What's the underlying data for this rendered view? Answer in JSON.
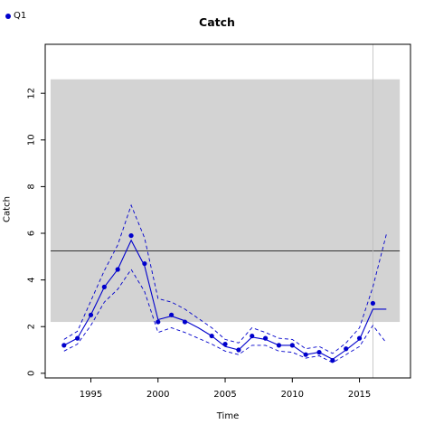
{
  "legend": {
    "label": "Q1",
    "color": "#0000cc"
  },
  "chart_data": {
    "type": "line",
    "title": "Catch",
    "xlabel": "Time",
    "ylabel": "Catch",
    "xlim": [
      1991.6,
      2018.8
    ],
    "ylim": [
      -0.2,
      14.1
    ],
    "xticks": [
      1995,
      2000,
      2005,
      2010,
      2015
    ],
    "yticks": [
      0,
      2,
      4,
      6,
      8,
      10,
      12
    ],
    "grid": false,
    "legend_position": "top-left",
    "shaded_band": {
      "x": [
        1992,
        2018
      ],
      "y": [
        2.2,
        12.6
      ],
      "color": "#d3d3d3"
    },
    "hline": 5.25,
    "vline": 2016,
    "series": [
      {
        "name": "Q1",
        "color": "#0000cc",
        "observed": {
          "x": [
            1993,
            1994,
            1995,
            1996,
            1997,
            1998,
            1999,
            2000,
            2001,
            2002,
            2004,
            2005,
            2006,
            2007,
            2008,
            2009,
            2010,
            2011,
            2012,
            2013,
            2014,
            2015,
            2016
          ],
          "y": [
            1.2,
            1.5,
            2.5,
            3.7,
            4.45,
            5.9,
            4.7,
            2.2,
            2.5,
            2.2,
            1.6,
            1.25,
            1.0,
            1.6,
            1.5,
            1.2,
            1.2,
            0.8,
            0.9,
            0.55,
            1.05,
            1.5,
            3.0
          ]
        },
        "fit": {
          "x": [
            1993,
            1994,
            1995,
            1996,
            1997,
            1998,
            1999,
            2000,
            2001,
            2002,
            2003,
            2004,
            2005,
            2006,
            2007,
            2008,
            2009,
            2010,
            2011,
            2012,
            2013,
            2014,
            2015,
            2016,
            2017
          ],
          "y": [
            1.2,
            1.5,
            2.5,
            3.7,
            4.45,
            5.7,
            4.6,
            2.3,
            2.45,
            2.25,
            1.95,
            1.6,
            1.15,
            1.0,
            1.55,
            1.45,
            1.2,
            1.2,
            0.8,
            0.9,
            0.6,
            1.0,
            1.45,
            2.75,
            2.75
          ]
        },
        "upper": {
          "x": [
            1993,
            1994,
            1995,
            1996,
            1997,
            1998,
            1999,
            2000,
            2001,
            2002,
            2003,
            2004,
            2005,
            2006,
            2007,
            2008,
            2009,
            2010,
            2011,
            2012,
            2013,
            2014,
            2015,
            2016,
            2017
          ],
          "y": [
            1.45,
            1.8,
            3.1,
            4.4,
            5.5,
            7.2,
            5.8,
            3.2,
            3.05,
            2.75,
            2.35,
            1.95,
            1.45,
            1.3,
            1.95,
            1.75,
            1.5,
            1.45,
            1.05,
            1.15,
            0.85,
            1.3,
            1.95,
            3.7,
            5.95
          ]
        },
        "lower": {
          "x": [
            1993,
            1994,
            1995,
            1996,
            1997,
            1998,
            1999,
            2000,
            2001,
            2002,
            2003,
            2004,
            2005,
            2006,
            2007,
            2008,
            2009,
            2010,
            2011,
            2012,
            2013,
            2014,
            2015,
            2016,
            2017
          ],
          "y": [
            0.95,
            1.25,
            2.05,
            3.05,
            3.6,
            4.45,
            3.5,
            1.75,
            1.95,
            1.75,
            1.5,
            1.25,
            0.95,
            0.8,
            1.2,
            1.2,
            0.95,
            0.9,
            0.65,
            0.75,
            0.45,
            0.8,
            1.15,
            2.05,
            1.3
          ]
        }
      }
    ]
  }
}
